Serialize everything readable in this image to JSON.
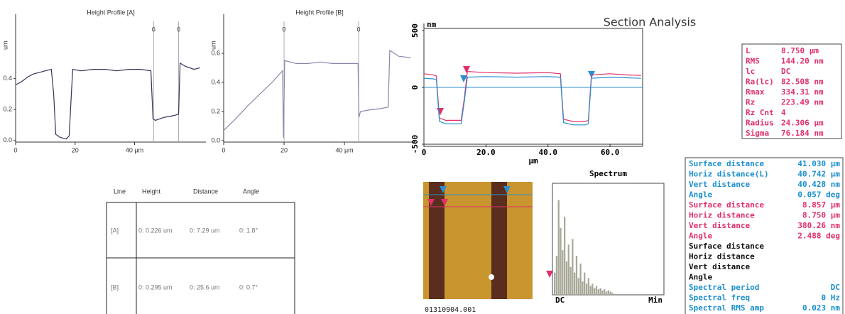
{
  "title": "Section Analysis",
  "file_name": "01310904.001",
  "chart_data": [
    {
      "type": "line",
      "title": "Height Profile [A]",
      "y_label": "um",
      "x": [
        0,
        2,
        4,
        6,
        8,
        10,
        12,
        12.8,
        13.5,
        15,
        17,
        18,
        18.6,
        19.2,
        22,
        26,
        30,
        34,
        38,
        42,
        45.5,
        46.2,
        47,
        50,
        53,
        54.8,
        55.3,
        57,
        60,
        62
      ],
      "series": [
        {
          "color": "#333355",
          "values": [
            0.36,
            0.38,
            0.41,
            0.43,
            0.44,
            0.45,
            0.46,
            0.3,
            0.04,
            0.02,
            0.01,
            0.03,
            0.25,
            0.46,
            0.45,
            0.46,
            0.46,
            0.45,
            0.46,
            0.46,
            0.45,
            0.14,
            0.13,
            0.15,
            0.16,
            0.17,
            0.5,
            0.48,
            0.46,
            0.47
          ]
        }
      ],
      "xlim": [
        0,
        64
      ],
      "ylim": [
        -0.01,
        0.77
      ],
      "xticks": [
        0,
        20,
        {
          "value": 40,
          "label": "40 µm"
        }
      ],
      "yticks": [
        {
          "value": 0,
          "label": "0.0"
        },
        0.2,
        0.4
      ],
      "cursors": [
        {
          "x": 46.4,
          "label": "0"
        },
        {
          "x": 54.8,
          "label": "0"
        }
      ]
    },
    {
      "type": "line",
      "title": "Height Profile [B]",
      "y_label": "um",
      "x": [
        0,
        4,
        8,
        12,
        16,
        19.5,
        19.8,
        20.2,
        24,
        28,
        32,
        36,
        40,
        44.5,
        44.8,
        45.3,
        48,
        52,
        54.5,
        55,
        58,
        62
      ],
      "series": [
        {
          "color": "#8888aa",
          "values": [
            0.07,
            0.15,
            0.24,
            0.32,
            0.4,
            0.48,
            0.02,
            0.55,
            0.53,
            0.53,
            0.54,
            0.53,
            0.53,
            0.53,
            0.16,
            0.2,
            0.21,
            0.22,
            0.23,
            0.62,
            0.58,
            0.57
          ]
        }
      ],
      "xlim": [
        0,
        63.5
      ],
      "ylim": [
        -0.01,
        0.82
      ],
      "xticks": [
        0,
        20,
        {
          "value": 40,
          "label": "40 µm"
        }
      ],
      "yticks": [
        {
          "value": 0,
          "label": "0.0"
        },
        0.2,
        0.4,
        0.6
      ],
      "cursors": [
        {
          "x": 20,
          "label": "0"
        },
        {
          "x": 44.7,
          "label": "0"
        }
      ]
    },
    {
      "type": "line",
      "x_label": "µm",
      "y_label": "nm",
      "x": [
        0,
        3,
        4,
        5,
        7,
        10,
        12,
        13,
        14,
        20,
        30,
        40,
        44,
        45,
        48,
        52,
        53,
        54,
        60,
        65,
        70
      ],
      "series": [
        {
          "color": "#e0306a",
          "values": [
            120,
            110,
            100,
            -270,
            -290,
            -290,
            -290,
            -100,
            140,
            130,
            125,
            130,
            120,
            -280,
            -300,
            -300,
            -290,
            110,
            120,
            110,
            105
          ]
        },
        {
          "color": "#2a8fd0",
          "values": [
            80,
            75,
            70,
            -300,
            -320,
            -320,
            -320,
            -130,
            90,
            95,
            90,
            95,
            90,
            -310,
            -330,
            -330,
            -320,
            80,
            90,
            85,
            80
          ]
        }
      ],
      "xlim": [
        0,
        70.5
      ],
      "ylim": [
        -500,
        500
      ],
      "xticks": [
        0,
        {
          "value": 20,
          "label": "20.0"
        },
        {
          "value": 40,
          "label": "40.0"
        },
        {
          "value": 60,
          "label": "60.0"
        }
      ],
      "yticks": [
        -500,
        0,
        500
      ]
    },
    {
      "type": "bar",
      "title": "Spectrum",
      "xtick_labels": [
        "DC",
        "Min"
      ],
      "color": "#a8a898",
      "values": [
        20,
        35,
        85,
        60,
        40,
        70,
        30,
        45,
        25,
        50,
        20,
        35,
        15,
        28,
        12,
        20,
        10,
        15,
        8,
        10,
        6,
        8,
        5,
        6,
        4,
        5,
        3,
        4,
        3,
        2
      ],
      "ylim": [
        0,
        100
      ]
    }
  ],
  "table": {
    "header": [
      "Line",
      "Height",
      "Distance",
      "Angle"
    ],
    "rows": [
      [
        "[A]",
        "0: 0.226 um",
        "0: 7.29 um",
        "0: 1.8°"
      ],
      [
        "[B]",
        "0: 0.295 um",
        "0: 25.6 um",
        "0: 0.7°"
      ]
    ]
  },
  "section_stats": [
    [
      "L",
      "8.750 µm"
    ],
    [
      "RMS",
      "144.20 nm"
    ],
    [
      "lc",
      "DC"
    ],
    [
      "Ra(lc)",
      "82.508 nm"
    ],
    [
      "Rmax",
      "334.31 nm"
    ],
    [
      "Rz",
      "223.49 nm"
    ],
    [
      "Rz Cnt",
      "4"
    ],
    [
      "Radius",
      "24.306 µm"
    ],
    [
      "Sigma",
      "76.184 nm"
    ]
  ],
  "measurements": [
    {
      "label": "Surface distance",
      "value": "41.030 µm",
      "color": "#1a8fd0"
    },
    {
      "label": "Horiz distance(L)",
      "value": "40.742 µm",
      "color": "#1a8fd0"
    },
    {
      "label": "Vert distance",
      "value": "40.428 nm",
      "color": "#1a8fd0"
    },
    {
      "label": "Angle",
      "value": "0.057 deg",
      "color": "#1a8fd0"
    },
    {
      "label": "Surface distance",
      "value": "8.857 µm",
      "color": "#e0306a"
    },
    {
      "label": "Horiz distance",
      "value": "8.750 µm",
      "color": "#e0306a"
    },
    {
      "label": "Vert distance",
      "value": "380.26 nm",
      "color": "#e0306a"
    },
    {
      "label": "Angle",
      "value": "2.488 deg",
      "color": "#e0306a"
    },
    {
      "label": "Surface distance",
      "color": "#111111"
    },
    {
      "label": "Horiz distance",
      "color": "#111111"
    },
    {
      "label": "Vert distance",
      "color": "#111111"
    },
    {
      "label": "Angle",
      "color": "#111111"
    },
    {
      "label": "Spectral period",
      "value": "DC",
      "color": "#1a8fd0"
    },
    {
      "label": "Spectral freq",
      "value": "0 Hz",
      "color": "#1a8fd0"
    },
    {
      "label": "Spectral RMS amp",
      "value": "0.023 nm",
      "color": "#1a8fd0"
    }
  ]
}
